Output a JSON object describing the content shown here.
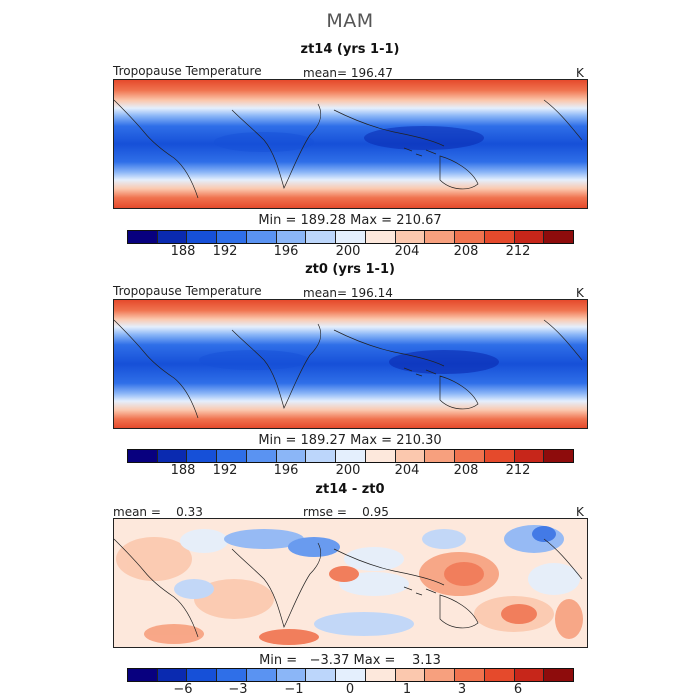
{
  "page": {
    "title": "MAM"
  },
  "panels": [
    {
      "title": "zt14 (yrs 1-1)",
      "left_label": "Tropopause Temperature",
      "mid_label": "mean= 196.47",
      "unit": "K",
      "minmax": "Min = 189.28 Max = 210.67",
      "cbar_ticks": [
        "188",
        "192",
        "196",
        "200",
        "204",
        "208",
        "212"
      ]
    },
    {
      "title": "zt0 (yrs 1-1)",
      "left_label": "Tropopause Temperature",
      "mid_label": "mean= 196.14",
      "unit": "K",
      "minmax": "Min = 189.27 Max = 210.30",
      "cbar_ticks": [
        "188",
        "192",
        "196",
        "200",
        "204",
        "208",
        "212"
      ]
    },
    {
      "title": "zt14 - zt0",
      "left_label": "mean =    0.33",
      "mid_label": "rmse =    0.95",
      "unit": "K",
      "minmax": "Min =   −3.37 Max =    3.13",
      "cbar_ticks": [
        "−6",
        "−3",
        "−1",
        "0",
        "1",
        "3",
        "6"
      ]
    }
  ],
  "colors": {
    "scale": [
      "#08007f",
      "#0a2ab0",
      "#1650d8",
      "#2f6fe8",
      "#5a93f2",
      "#8bb6f7",
      "#bcd6fb",
      "#e4effd",
      "#fde8dc",
      "#fbc8ae",
      "#f7a07e",
      "#f0734f",
      "#e54a2c",
      "#c7261a",
      "#8e0c0c"
    ]
  },
  "chart_data": [
    {
      "type": "heatmap",
      "title": "zt14 (yrs 1-1)",
      "variable": "Tropopause Temperature",
      "units": "K",
      "mean": 196.47,
      "min": 189.28,
      "max": 210.67,
      "colorbar_levels": [
        186,
        188,
        190,
        192,
        194,
        196,
        198,
        200,
        202,
        204,
        206,
        208,
        210,
        212,
        214,
        216
      ],
      "pattern": "zonal bands: cold tropics (~190 K), warm subtropics/high latitudes (~210 K)"
    },
    {
      "type": "heatmap",
      "title": "zt0 (yrs 1-1)",
      "variable": "Tropopause Temperature",
      "units": "K",
      "mean": 196.14,
      "min": 189.27,
      "max": 210.3,
      "colorbar_levels": [
        186,
        188,
        190,
        192,
        194,
        196,
        198,
        200,
        202,
        204,
        206,
        208,
        210,
        212,
        214,
        216
      ]
    },
    {
      "type": "heatmap",
      "title": "zt14 - zt0",
      "units": "K",
      "mean": 0.33,
      "rmse": 0.95,
      "min": -3.37,
      "max": 3.13,
      "colorbar_levels": [
        -8,
        -6,
        -4,
        -3,
        -2,
        -1,
        -0.5,
        0,
        0.5,
        1,
        2,
        3,
        4,
        6,
        8
      ]
    }
  ]
}
